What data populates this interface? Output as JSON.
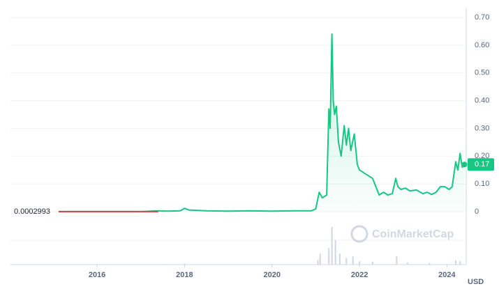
{
  "chart_data": {
    "type": "line",
    "currency": "USD",
    "watermark": "CoinMarketCap",
    "start_price": 0.0002993,
    "start_color": "#ea3943",
    "x": [
      2015.12,
      2015.5,
      2016.0,
      2016.5,
      2017.0,
      2017.4,
      2017.6,
      2017.9,
      2018.0,
      2018.1,
      2018.5,
      2019.0,
      2019.5,
      2020.0,
      2020.5,
      2020.9,
      2021.0,
      2021.08,
      2021.15,
      2021.25,
      2021.3,
      2021.33,
      2021.37,
      2021.4,
      2021.43,
      2021.47,
      2021.52,
      2021.58,
      2021.65,
      2021.7,
      2021.75,
      2021.8,
      2021.88,
      2021.95,
      2022.0,
      2022.1,
      2022.2,
      2022.3,
      2022.4,
      2022.45,
      2022.55,
      2022.65,
      2022.75,
      2022.83,
      2022.88,
      2022.95,
      2023.05,
      2023.15,
      2023.3,
      2023.45,
      2023.55,
      2023.65,
      2023.75,
      2023.85,
      2023.95,
      2024.05,
      2024.12,
      2024.2,
      2024.25,
      2024.3,
      2024.35,
      2024.4
    ],
    "values": [
      0.0002993,
      0.0002,
      0.0002,
      0.00025,
      0.0002,
      0.003,
      0.002,
      0.003,
      0.012,
      0.006,
      0.003,
      0.002,
      0.003,
      0.002,
      0.003,
      0.003,
      0.01,
      0.07,
      0.05,
      0.06,
      0.37,
      0.3,
      0.64,
      0.4,
      0.35,
      0.38,
      0.25,
      0.2,
      0.31,
      0.24,
      0.3,
      0.22,
      0.28,
      0.17,
      0.15,
      0.14,
      0.13,
      0.12,
      0.08,
      0.06,
      0.07,
      0.06,
      0.065,
      0.12,
      0.09,
      0.08,
      0.085,
      0.075,
      0.078,
      0.065,
      0.07,
      0.062,
      0.07,
      0.09,
      0.09,
      0.08,
      0.09,
      0.18,
      0.15,
      0.21,
      0.16,
      0.17
    ],
    "color": "#16c784",
    "xlim": [
      2014.02,
      2024.44
    ],
    "ylim": [
      0,
      0.7
    ],
    "xticks": [
      2016,
      2018,
      2020,
      2022,
      2024
    ],
    "yticks": [
      0,
      {
        "value": 0.1,
        "label": "0.10"
      },
      {
        "value": 0.2,
        "label": "0.20"
      },
      {
        "value": 0.3,
        "label": "0.30"
      },
      {
        "value": 0.4,
        "label": "0.40"
      },
      {
        "value": 0.5,
        "label": "0.50"
      },
      {
        "value": 0.6,
        "label": "0.60"
      },
      {
        "value": 0.7,
        "label": "0.70"
      }
    ],
    "grid": true,
    "volume": {
      "color": "#cfd6e4",
      "x": [
        2017.5,
        2018.0,
        2021.05,
        2021.1,
        2021.3,
        2021.37,
        2021.45,
        2021.55,
        2021.7,
        2021.85,
        2022.0,
        2022.3,
        2022.85,
        2023.1,
        2023.6,
        2024.2,
        2024.3
      ],
      "values": [
        1,
        2,
        8,
        20,
        30,
        69,
        45,
        20,
        12,
        15,
        6,
        5,
        15,
        4,
        3,
        8,
        6
      ],
      "ylim": [
        0,
        70
      ]
    }
  }
}
